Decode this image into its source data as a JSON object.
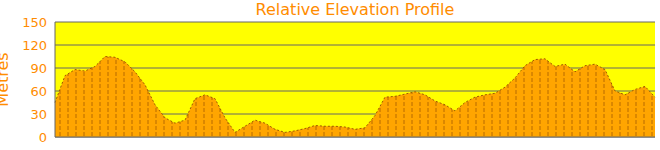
{
  "chart_data": {
    "type": "area",
    "title": "Relative Elevation Profile",
    "y_label": "Metres",
    "values": [
      45,
      80,
      88,
      86,
      92,
      105,
      104,
      98,
      85,
      68,
      42,
      25,
      18,
      22,
      50,
      55,
      50,
      25,
      6,
      14,
      22,
      18,
      10,
      6,
      8,
      11,
      15,
      14,
      14,
      13,
      10,
      12,
      28,
      52,
      53,
      56,
      59,
      55,
      47,
      42,
      34,
      45,
      52,
      55,
      57,
      65,
      77,
      93,
      101,
      102,
      92,
      95,
      85,
      93,
      95,
      88,
      60,
      55,
      62,
      66,
      52
    ],
    "color": "#ffa500",
    "ylim": [
      0,
      150
    ],
    "yticks": [
      0,
      30,
      60,
      90,
      120,
      150
    ],
    "grid": true,
    "tick_labels": "y"
  }
}
